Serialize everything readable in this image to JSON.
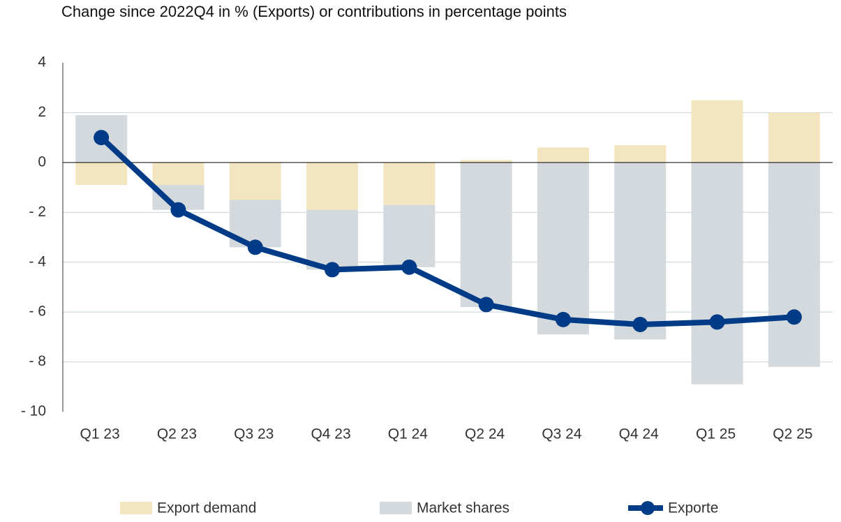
{
  "chart_data": {
    "type": "bar_line",
    "title": "Change since 2022Q4 in % (Exports) or contributions in percentage points",
    "categories": [
      "Q1 23",
      "Q2 23",
      "Q3 23",
      "Q4 23",
      "Q1 24",
      "Q2 24",
      "Q3 24",
      "Q4 24",
      "Q1 25",
      "Q2 25"
    ],
    "series": [
      {
        "name": "Export demand",
        "color": "#f3e5bf",
        "kind": "bar",
        "values": [
          -0.9,
          -0.9,
          -1.5,
          -1.9,
          -1.7,
          0.1,
          0.6,
          0.7,
          2.5,
          2.0
        ]
      },
      {
        "name": "Market shares",
        "color": "#d3d9dd",
        "kind": "bar",
        "values": [
          1.9,
          -1.0,
          -1.9,
          -2.4,
          -2.5,
          -5.8,
          -6.9,
          -7.1,
          -8.9,
          -8.2
        ]
      },
      {
        "name": "Exporte",
        "color": "#003b87",
        "kind": "line",
        "values": [
          1.0,
          -1.9,
          -3.4,
          -4.3,
          -4.2,
          -5.7,
          -6.3,
          -6.5,
          -6.4,
          -6.2
        ]
      }
    ],
    "ylim": [
      -10,
      4
    ],
    "yticks": [
      {
        "value": -10,
        "label": "- 10"
      },
      {
        "value": -8,
        "label": "- 8"
      },
      {
        "value": -6,
        "label": "- 6"
      },
      {
        "value": -4,
        "label": "- 4"
      },
      {
        "value": -2,
        "label": "- 2"
      },
      0,
      2,
      4
    ],
    "grid": true,
    "legend": "bottom",
    "stacked": true
  }
}
